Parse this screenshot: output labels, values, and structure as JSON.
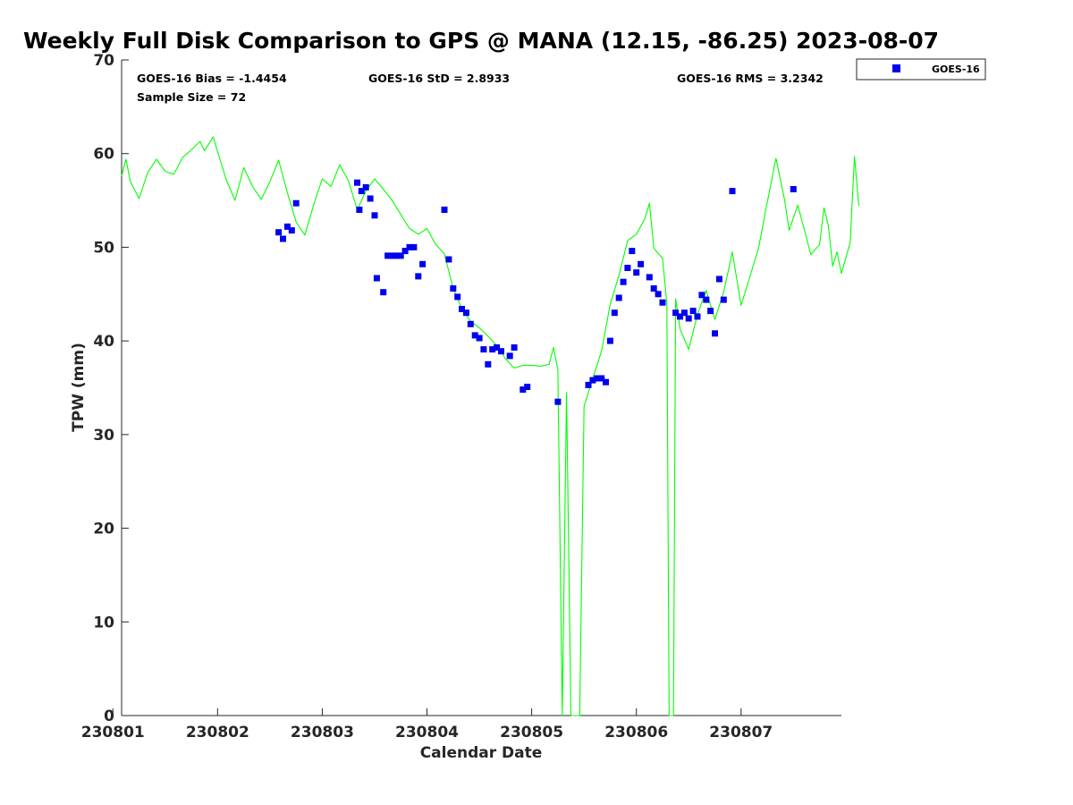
{
  "chart_data": {
    "type": "line",
    "title": "Weekly Full Disk Comparison to GPS @ MANA (12.15, -86.25) 2023-08-07",
    "xlabel": "Calendar Date",
    "ylabel": "TPW (mm)",
    "xlim": [
      "2023-08-01 02:00",
      "2023-08-07 23:00"
    ],
    "ylim": [
      0,
      70
    ],
    "x_ticks": [
      {
        "label": "230801",
        "date": "2023-08-01"
      },
      {
        "label": "230802",
        "date": "2023-08-02"
      },
      {
        "label": "230803",
        "date": "2023-08-03"
      },
      {
        "label": "230804",
        "date": "2023-08-04"
      },
      {
        "label": "230805",
        "date": "2023-08-05"
      },
      {
        "label": "230806",
        "date": "2023-08-06"
      },
      {
        "label": "230807",
        "date": "2023-08-07"
      }
    ],
    "y_ticks": [
      0,
      10,
      20,
      30,
      40,
      50,
      60,
      70
    ],
    "grid": false,
    "legend_position": "outside-top-right",
    "stats": {
      "bias": "GOES-16 Bias = -1.4454",
      "std": "GOES-16 StD = 2.8933",
      "rms": "GOES-16 RMS = 3.2342",
      "sample": "Sample Size = 72"
    },
    "series": [
      {
        "name": "GPS",
        "kind": "line",
        "color": "#00ff00",
        "points": [
          [
            "2023-08-01 02:00",
            57.6
          ],
          [
            "2023-08-01 03:00",
            59.4
          ],
          [
            "2023-08-01 04:00",
            57.0
          ],
          [
            "2023-08-01 06:00",
            55.2
          ],
          [
            "2023-08-01 08:00",
            58.0
          ],
          [
            "2023-08-01 10:00",
            59.4
          ],
          [
            "2023-08-01 12:00",
            58.1
          ],
          [
            "2023-08-01 14:00",
            57.8
          ],
          [
            "2023-08-01 16:00",
            59.6
          ],
          [
            "2023-08-01 18:00",
            60.4
          ],
          [
            "2023-08-01 20:00",
            61.3
          ],
          [
            "2023-08-01 21:00",
            60.3
          ],
          [
            "2023-08-01 23:00",
            61.8
          ],
          [
            "2023-08-02 00:00",
            60.2
          ],
          [
            "2023-08-02 02:00",
            57.2
          ],
          [
            "2023-08-02 04:00",
            55.0
          ],
          [
            "2023-08-02 06:00",
            58.5
          ],
          [
            "2023-08-02 08:00",
            56.5
          ],
          [
            "2023-08-02 10:00",
            55.1
          ],
          [
            "2023-08-02 12:00",
            57.0
          ],
          [
            "2023-08-02 14:00",
            59.3
          ],
          [
            "2023-08-02 16:00",
            55.8
          ],
          [
            "2023-08-02 18:00",
            52.7
          ],
          [
            "2023-08-02 20:00",
            51.3
          ],
          [
            "2023-08-02 22:00",
            54.5
          ],
          [
            "2023-08-03 00:00",
            57.3
          ],
          [
            "2023-08-03 02:00",
            56.5
          ],
          [
            "2023-08-03 04:00",
            58.8
          ],
          [
            "2023-08-03 06:00",
            57.1
          ],
          [
            "2023-08-03 08:00",
            54.0
          ],
          [
            "2023-08-03 10:00",
            56.0
          ],
          [
            "2023-08-03 12:00",
            57.3
          ],
          [
            "2023-08-03 14:00",
            56.2
          ],
          [
            "2023-08-03 16:00",
            55.0
          ],
          [
            "2023-08-03 18:00",
            53.5
          ],
          [
            "2023-08-03 20:00",
            52.0
          ],
          [
            "2023-08-03 22:00",
            51.4
          ],
          [
            "2023-08-04 00:00",
            52.0
          ],
          [
            "2023-08-04 02:00",
            50.3
          ],
          [
            "2023-08-04 04:00",
            49.3
          ],
          [
            "2023-08-04 06:00",
            45.6
          ],
          [
            "2023-08-04 08:00",
            43.4
          ],
          [
            "2023-08-04 10:00",
            42.1
          ],
          [
            "2023-08-04 12:00",
            41.4
          ],
          [
            "2023-08-04 14:00",
            40.5
          ],
          [
            "2023-08-04 16:00",
            39.5
          ],
          [
            "2023-08-04 18:00",
            38.1
          ],
          [
            "2023-08-04 20:00",
            37.1
          ],
          [
            "2023-08-04 22:00",
            37.4
          ],
          [
            "2023-08-05 00:00",
            37.4
          ],
          [
            "2023-08-05 02:00",
            37.3
          ],
          [
            "2023-08-05 04:00",
            37.5
          ],
          [
            "2023-08-05 05:00",
            39.3
          ],
          [
            "2023-08-05 06:00",
            36.9
          ],
          [
            "2023-08-05 07:00",
            0.0
          ],
          [
            "2023-08-05 08:00",
            34.5
          ],
          [
            "2023-08-05 09:00",
            0.0
          ],
          [
            "2023-08-05 11:00",
            0.0
          ],
          [
            "2023-08-05 12:00",
            33.0
          ],
          [
            "2023-08-05 14:00",
            36.0
          ],
          [
            "2023-08-05 16:00",
            38.9
          ],
          [
            "2023-08-05 18:00",
            43.9
          ],
          [
            "2023-08-05 20:00",
            47.0
          ],
          [
            "2023-08-05 22:00",
            50.7
          ],
          [
            "2023-08-06 00:00",
            51.4
          ],
          [
            "2023-08-06 02:00",
            53.1
          ],
          [
            "2023-08-06 03:00",
            54.7
          ],
          [
            "2023-08-06 04:00",
            49.9
          ],
          [
            "2023-08-06 06:00",
            48.8
          ],
          [
            "2023-08-06 07:00",
            44.0
          ],
          [
            "2023-08-06 07:30",
            0.0
          ],
          [
            "2023-08-06 08:30",
            0.0
          ],
          [
            "2023-08-06 09:00",
            44.5
          ],
          [
            "2023-08-06 10:00",
            41.3
          ],
          [
            "2023-08-06 12:00",
            39.1
          ],
          [
            "2023-08-06 14:00",
            42.8
          ],
          [
            "2023-08-06 16:00",
            45.4
          ],
          [
            "2023-08-06 18:00",
            42.3
          ],
          [
            "2023-08-06 20:00",
            45.2
          ],
          [
            "2023-08-06 22:00",
            49.5
          ],
          [
            "2023-08-07 00:00",
            43.8
          ],
          [
            "2023-08-07 02:00",
            46.8
          ],
          [
            "2023-08-07 04:00",
            49.9
          ],
          [
            "2023-08-07 06:00",
            54.8
          ],
          [
            "2023-08-07 08:00",
            59.5
          ],
          [
            "2023-08-07 10:00",
            55.0
          ],
          [
            "2023-08-07 11:00",
            51.8
          ],
          [
            "2023-08-07 13:00",
            54.5
          ],
          [
            "2023-08-07 15:00",
            51.0
          ],
          [
            "2023-08-07 16:00",
            49.2
          ],
          [
            "2023-08-07 18:00",
            50.3
          ],
          [
            "2023-08-07 19:00",
            54.2
          ],
          [
            "2023-08-07 20:00",
            52.3
          ],
          [
            "2023-08-07 21:00",
            48.0
          ],
          [
            "2023-08-07 22:00",
            49.5
          ],
          [
            "2023-08-07 23:00",
            47.2
          ],
          [
            "2023-08-08 01:00",
            50.5
          ],
          [
            "2023-08-08 02:00",
            59.7
          ],
          [
            "2023-08-08 03:00",
            54.4
          ]
        ]
      },
      {
        "name": "GOES-16",
        "kind": "scatter",
        "color": "#0000ee",
        "points": [
          [
            "2023-08-02 14:00",
            51.6
          ],
          [
            "2023-08-02 15:00",
            50.9
          ],
          [
            "2023-08-02 16:00",
            52.2
          ],
          [
            "2023-08-02 17:00",
            51.8
          ],
          [
            "2023-08-02 18:00",
            54.7
          ],
          [
            "2023-08-03 08:00",
            56.9
          ],
          [
            "2023-08-03 08:30",
            54.0
          ],
          [
            "2023-08-03 09:00",
            56.0
          ],
          [
            "2023-08-03 10:00",
            56.4
          ],
          [
            "2023-08-03 11:00",
            55.2
          ],
          [
            "2023-08-03 12:00",
            53.4
          ],
          [
            "2023-08-03 12:30",
            46.7
          ],
          [
            "2023-08-03 14:00",
            45.2
          ],
          [
            "2023-08-03 15:00",
            49.1
          ],
          [
            "2023-08-03 16:00",
            49.1
          ],
          [
            "2023-08-03 17:00",
            49.1
          ],
          [
            "2023-08-03 18:00",
            49.1
          ],
          [
            "2023-08-03 19:00",
            49.6
          ],
          [
            "2023-08-03 20:00",
            50.0
          ],
          [
            "2023-08-03 21:00",
            50.0
          ],
          [
            "2023-08-03 22:00",
            46.9
          ],
          [
            "2023-08-03 23:00",
            48.2
          ],
          [
            "2023-08-04 04:00",
            54.0
          ],
          [
            "2023-08-04 05:00",
            48.7
          ],
          [
            "2023-08-04 06:00",
            45.6
          ],
          [
            "2023-08-04 07:00",
            44.7
          ],
          [
            "2023-08-04 08:00",
            43.4
          ],
          [
            "2023-08-04 09:00",
            43.0
          ],
          [
            "2023-08-04 10:00",
            41.8
          ],
          [
            "2023-08-04 11:00",
            40.6
          ],
          [
            "2023-08-04 12:00",
            40.3
          ],
          [
            "2023-08-04 13:00",
            39.1
          ],
          [
            "2023-08-04 14:00",
            37.5
          ],
          [
            "2023-08-04 15:00",
            39.1
          ],
          [
            "2023-08-04 16:00",
            39.3
          ],
          [
            "2023-08-04 17:00",
            38.9
          ],
          [
            "2023-08-04 19:00",
            38.4
          ],
          [
            "2023-08-04 20:00",
            39.3
          ],
          [
            "2023-08-04 22:00",
            34.8
          ],
          [
            "2023-08-04 23:00",
            35.1
          ],
          [
            "2023-08-05 06:00",
            33.5
          ],
          [
            "2023-08-05 13:00",
            35.3
          ],
          [
            "2023-08-05 14:00",
            35.8
          ],
          [
            "2023-08-05 15:00",
            36.0
          ],
          [
            "2023-08-05 16:00",
            36.0
          ],
          [
            "2023-08-05 17:00",
            35.6
          ],
          [
            "2023-08-05 18:00",
            40.0
          ],
          [
            "2023-08-05 19:00",
            43.0
          ],
          [
            "2023-08-05 20:00",
            44.6
          ],
          [
            "2023-08-05 21:00",
            46.3
          ],
          [
            "2023-08-05 22:00",
            47.8
          ],
          [
            "2023-08-05 23:00",
            49.6
          ],
          [
            "2023-08-06 00:00",
            47.3
          ],
          [
            "2023-08-06 01:00",
            48.2
          ],
          [
            "2023-08-06 03:00",
            46.8
          ],
          [
            "2023-08-06 04:00",
            45.6
          ],
          [
            "2023-08-06 05:00",
            45.0
          ],
          [
            "2023-08-06 06:00",
            44.1
          ],
          [
            "2023-08-06 09:00",
            43.0
          ],
          [
            "2023-08-06 10:00",
            42.6
          ],
          [
            "2023-08-06 11:00",
            43.0
          ],
          [
            "2023-08-06 12:00",
            42.4
          ],
          [
            "2023-08-06 13:00",
            43.2
          ],
          [
            "2023-08-06 14:00",
            42.6
          ],
          [
            "2023-08-06 15:00",
            44.9
          ],
          [
            "2023-08-06 16:00",
            44.4
          ],
          [
            "2023-08-06 17:00",
            43.2
          ],
          [
            "2023-08-06 18:00",
            40.8
          ],
          [
            "2023-08-06 19:00",
            46.6
          ],
          [
            "2023-08-06 20:00",
            44.4
          ],
          [
            "2023-08-06 22:00",
            56.0
          ],
          [
            "2023-08-07 12:00",
            56.2
          ]
        ]
      }
    ]
  }
}
